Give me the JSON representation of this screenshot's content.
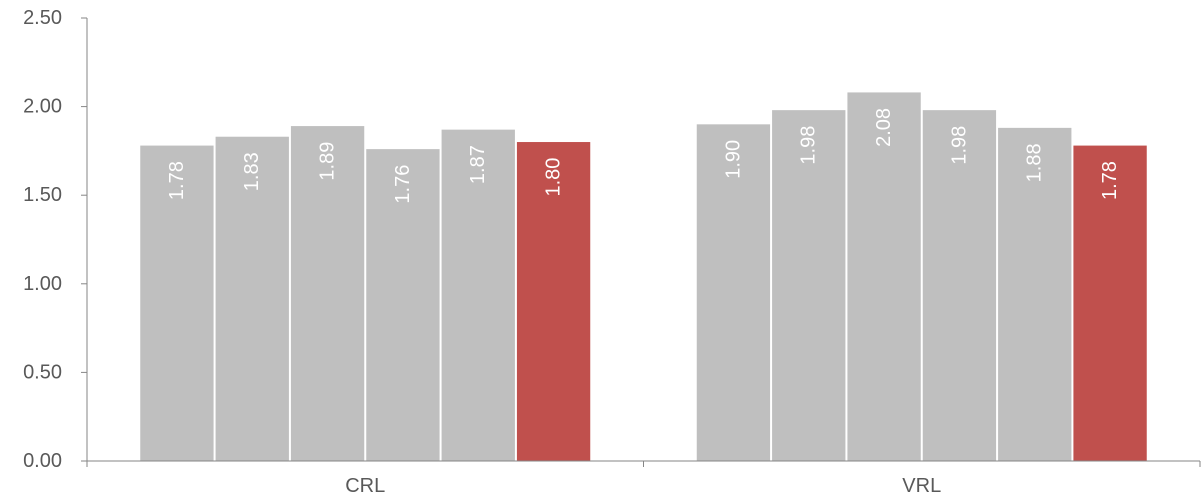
{
  "chart_data": {
    "type": "bar",
    "categories": [
      "CRL",
      "VRL"
    ],
    "series": [
      {
        "values": [
          1.78,
          1.9
        ]
      },
      {
        "values": [
          1.83,
          1.98
        ]
      },
      {
        "values": [
          1.89,
          2.08
        ]
      },
      {
        "values": [
          1.76,
          1.98
        ]
      },
      {
        "values": [
          1.87,
          1.88
        ]
      },
      {
        "values": [
          1.8,
          1.78
        ]
      }
    ],
    "value_labels": [
      [
        "1.78",
        "1.83",
        "1.89",
        "1.76",
        "1.87",
        "1.80"
      ],
      [
        "1.90",
        "1.98",
        "2.08",
        "1.98",
        "1.88",
        "1.78"
      ]
    ],
    "yticks": [
      "0.00",
      "0.50",
      "1.00",
      "1.50",
      "2.00",
      "2.50"
    ],
    "ylim": [
      0,
      2.5
    ],
    "title": "",
    "xlabel": "",
    "ylabel": "",
    "grid": false,
    "legend": "none",
    "colors": {
      "bar": "#bfbfbf",
      "highlight_bar": "#c0504d",
      "axis": "#868686",
      "text": "#595959",
      "bar_label": "#ffffff"
    }
  }
}
